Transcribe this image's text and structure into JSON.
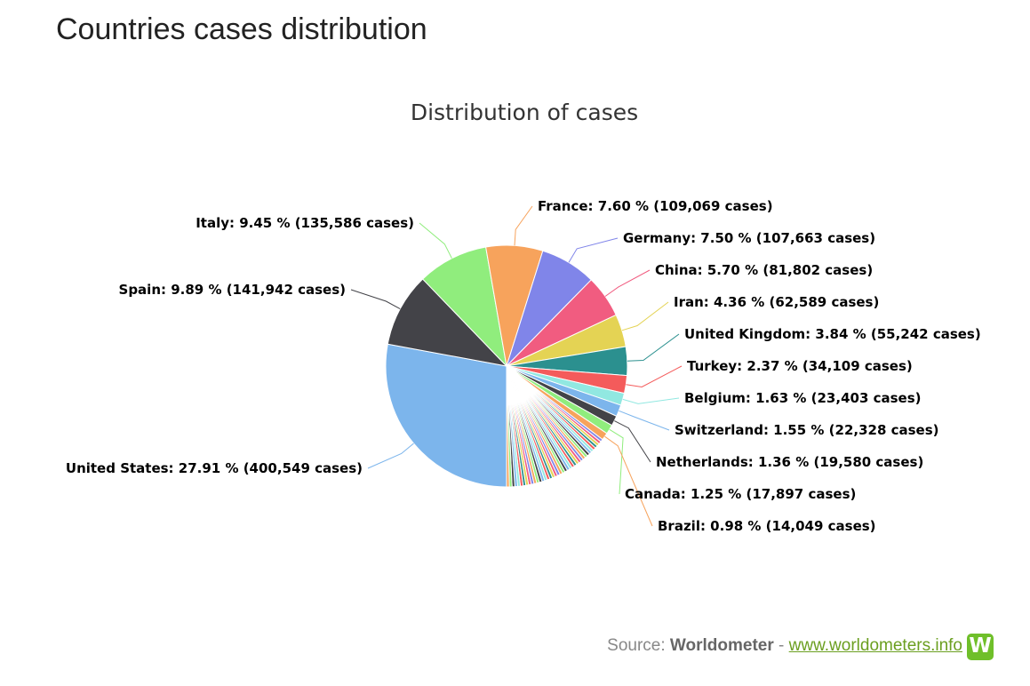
{
  "page": {
    "title": "Countries cases distribution"
  },
  "source": {
    "prefix": "Source:",
    "name": "Worldometer",
    "separator": "-",
    "link_text": "www.worldometers.info",
    "logo_letter": "W"
  },
  "chart_data": {
    "type": "pie",
    "title": "Distribution of cases",
    "label_format": "{name}: {percent} % ({cases} cases)",
    "slices": [
      {
        "name": "United States",
        "percent": "27.91",
        "cases": "400,549",
        "value": 27.91,
        "color": "#7cb5ec",
        "labeled": true
      },
      {
        "name": "Spain",
        "percent": "9.89",
        "cases": "141,942",
        "value": 9.89,
        "color": "#434348",
        "labeled": true
      },
      {
        "name": "Italy",
        "percent": "9.45",
        "cases": "135,586",
        "value": 9.45,
        "color": "#90ed7d",
        "labeled": true
      },
      {
        "name": "France",
        "percent": "7.60",
        "cases": "109,069",
        "value": 7.6,
        "color": "#f7a35c",
        "labeled": true
      },
      {
        "name": "Germany",
        "percent": "7.50",
        "cases": "107,663",
        "value": 7.5,
        "color": "#8085e9",
        "labeled": true
      },
      {
        "name": "China",
        "percent": "5.70",
        "cases": "81,802",
        "value": 5.7,
        "color": "#f15c80",
        "labeled": true
      },
      {
        "name": "Iran",
        "percent": "4.36",
        "cases": "62,589",
        "value": 4.36,
        "color": "#e4d354",
        "labeled": true
      },
      {
        "name": "United Kingdom",
        "percent": "3.84",
        "cases": "55,242",
        "value": 3.84,
        "color": "#2b908f",
        "labeled": true
      },
      {
        "name": "Turkey",
        "percent": "2.37",
        "cases": "34,109",
        "value": 2.37,
        "color": "#f45b5b",
        "labeled": true
      },
      {
        "name": "Belgium",
        "percent": "1.63",
        "cases": "23,403",
        "value": 1.63,
        "color": "#91e8e1",
        "labeled": true
      },
      {
        "name": "Switzerland",
        "percent": "1.55",
        "cases": "22,328",
        "value": 1.55,
        "color": "#7cb5ec",
        "labeled": true
      },
      {
        "name": "Netherlands",
        "percent": "1.36",
        "cases": "19,580",
        "value": 1.36,
        "color": "#434348",
        "labeled": true
      },
      {
        "name": "Canada",
        "percent": "1.25",
        "cases": "17,897",
        "value": 1.25,
        "color": "#90ed7d",
        "labeled": true
      },
      {
        "name": "Brazil",
        "percent": "0.98",
        "cases": "14,049",
        "value": 0.98,
        "color": "#f7a35c",
        "labeled": true
      }
    ],
    "unlabeled_small_slices": {
      "count": 40,
      "total_percent": 14.61
    },
    "palette": [
      "#7cb5ec",
      "#434348",
      "#90ed7d",
      "#f7a35c",
      "#8085e9",
      "#f15c80",
      "#e4d354",
      "#2b908f",
      "#f45b5b",
      "#91e8e1"
    ]
  }
}
